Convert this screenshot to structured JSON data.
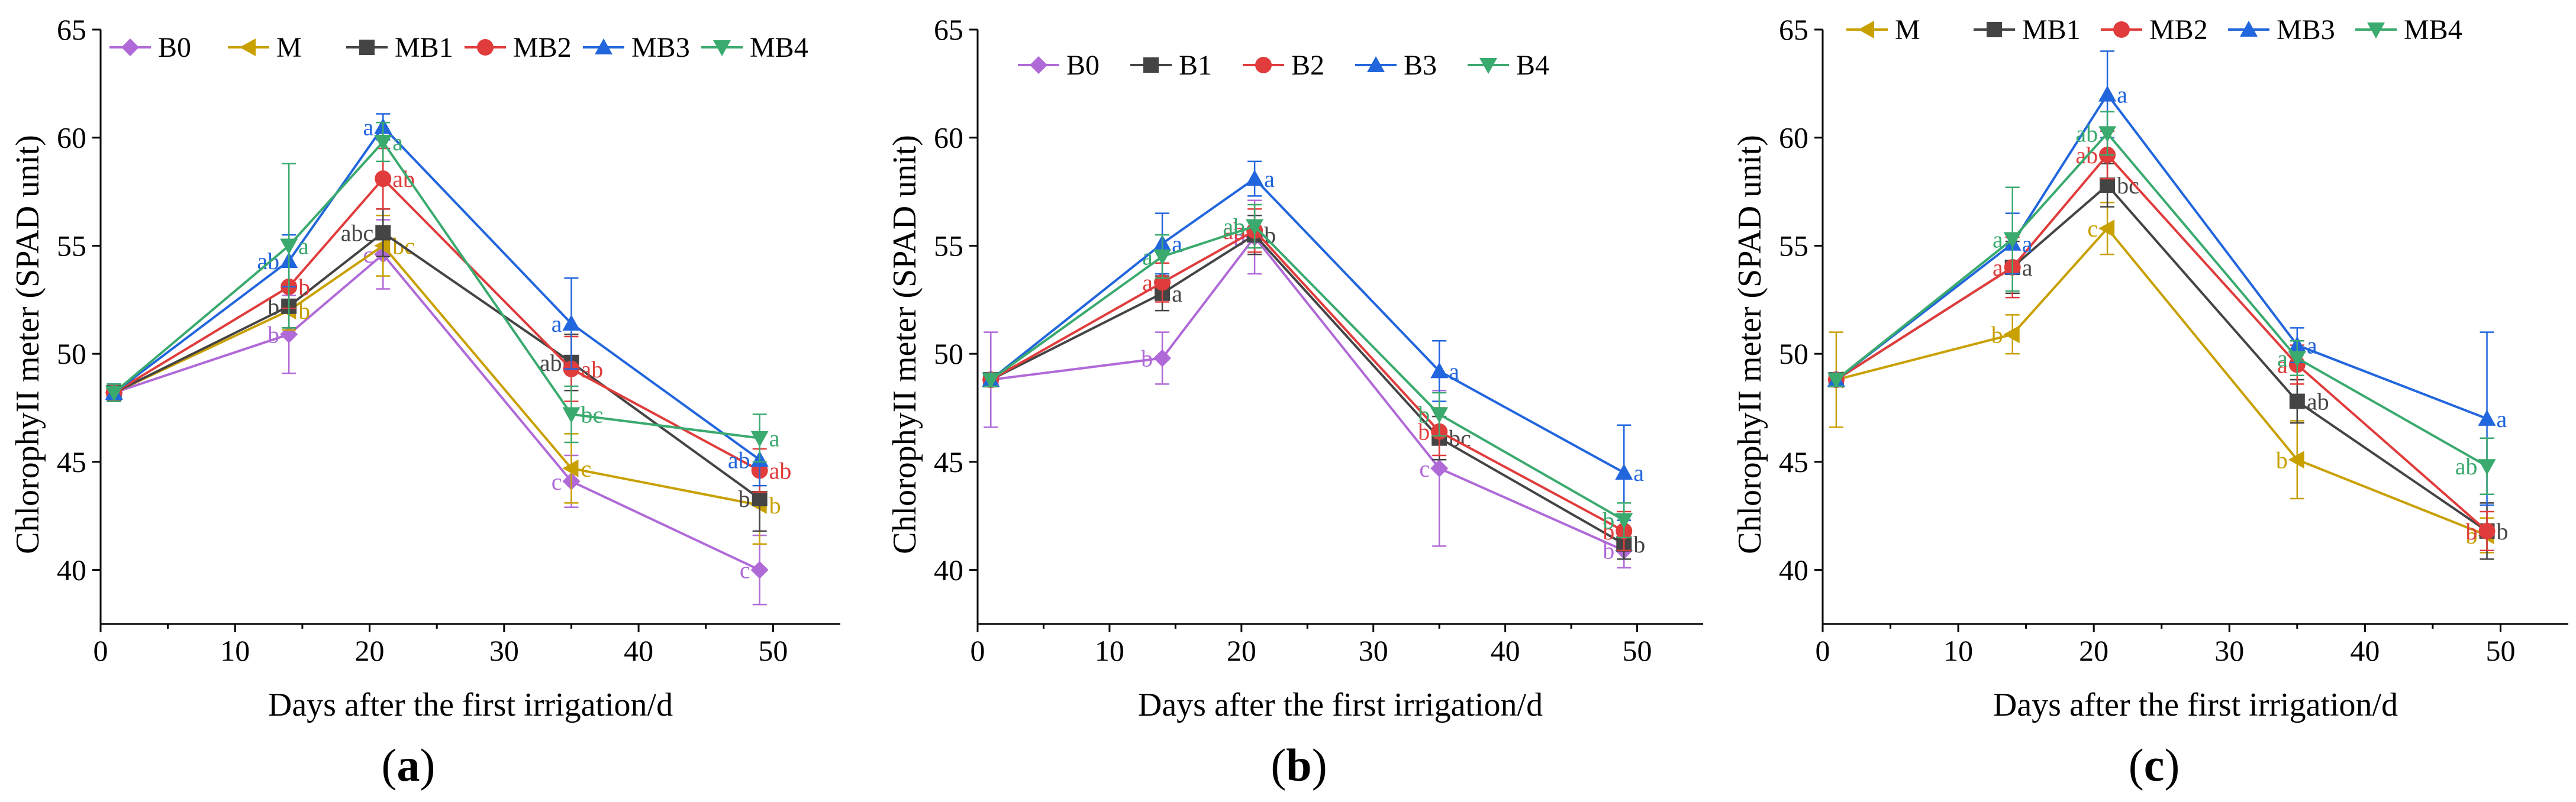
{
  "chart_data": [
    {
      "type": "line",
      "panel_label": "(a)",
      "panel_letter": "a",
      "xlabel": "Days after the first irrigation/d",
      "ylabel": "ChlorophyII meter (SPAD unit)",
      "xlim": [
        0,
        55
      ],
      "ylim": [
        37.5,
        65
      ],
      "xticks": [
        0,
        10,
        20,
        30,
        40,
        50
      ],
      "yticks": [
        40,
        45,
        50,
        55,
        60,
        65
      ],
      "x": [
        1,
        14,
        21,
        35,
        49
      ],
      "legend_position": "top",
      "series": [
        {
          "name": "B0",
          "color": "#b06ad8",
          "marker": "diamond",
          "values": [
            48.2,
            50.9,
            54.6,
            44.1,
            40.0
          ],
          "errors": [
            0.4,
            1.8,
            1.6,
            1.2,
            1.6
          ],
          "labels": [
            "",
            "b",
            "c",
            "c",
            "c"
          ]
        },
        {
          "name": "M",
          "color": "#c8a000",
          "marker": "triangle-left",
          "values": [
            48.2,
            52.0,
            55.0,
            44.7,
            43.0
          ],
          "errors": [
            0.4,
            0.9,
            1.4,
            1.6,
            1.8
          ],
          "labels": [
            "",
            "b",
            "bc",
            "c",
            "b"
          ]
        },
        {
          "name": "MB1",
          "color": "#444444",
          "marker": "square",
          "values": [
            48.2,
            52.2,
            55.6,
            49.6,
            43.3
          ],
          "errors": [
            0.4,
            1.0,
            1.1,
            1.3,
            1.5
          ],
          "labels": [
            "",
            "b",
            "abc",
            "ab",
            "b"
          ]
        },
        {
          "name": "MB2",
          "color": "#e03c3c",
          "marker": "circle",
          "values": [
            48.2,
            53.1,
            58.1,
            49.3,
            44.6
          ],
          "errors": [
            0.4,
            1.0,
            1.4,
            1.5,
            1.0
          ],
          "labels": [
            "",
            "b",
            "ab",
            "ab",
            "ab"
          ]
        },
        {
          "name": "MB3",
          "color": "#2266dd",
          "marker": "triangle-up",
          "values": [
            48.2,
            54.3,
            60.5,
            51.4,
            45.1
          ],
          "errors": [
            0.4,
            1.2,
            0.6,
            2.1,
            1.2
          ],
          "labels": [
            "",
            "ab",
            "a",
            "a",
            "ab"
          ]
        },
        {
          "name": "MB4",
          "color": "#3aaa6e",
          "marker": "triangle-down",
          "values": [
            48.2,
            55.0,
            59.8,
            47.2,
            46.1
          ],
          "errors": [
            0.4,
            3.8,
            0.9,
            1.3,
            1.1
          ],
          "labels": [
            "",
            "a",
            "a",
            "bc",
            "a"
          ]
        }
      ]
    },
    {
      "type": "line",
      "panel_label": "(b)",
      "panel_letter": "b",
      "xlabel": "Days after the first irrigation/d",
      "ylabel": "ChlorophyII meter (SPAD unit)",
      "xlim": [
        0,
        55
      ],
      "ylim": [
        37.5,
        65
      ],
      "xticks": [
        0,
        10,
        20,
        30,
        40,
        50
      ],
      "yticks": [
        40,
        45,
        50,
        55,
        60,
        65
      ],
      "x": [
        1,
        14,
        21,
        35,
        49
      ],
      "legend_position": "top",
      "series": [
        {
          "name": "B0",
          "color": "#b06ad8",
          "marker": "diamond",
          "values": [
            48.8,
            49.8,
            55.4,
            44.7,
            40.9
          ],
          "errors": [
            2.2,
            1.2,
            1.7,
            3.6,
            0.8
          ],
          "labels": [
            "",
            "b",
            "b",
            "c",
            "b"
          ]
        },
        {
          "name": "B1",
          "color": "#444444",
          "marker": "square",
          "values": [
            48.8,
            52.8,
            55.5,
            46.1,
            41.2
          ],
          "errors": [
            0.3,
            0.8,
            0.9,
            1.0,
            0.7
          ],
          "labels": [
            "",
            "a",
            "b",
            "bc",
            "b"
          ]
        },
        {
          "name": "B2",
          "color": "#e03c3c",
          "marker": "circle",
          "values": [
            48.8,
            53.3,
            55.7,
            46.4,
            41.8
          ],
          "errors": [
            0.3,
            0.9,
            1.0,
            1.1,
            0.9
          ],
          "labels": [
            "",
            "a",
            "ab",
            "b",
            "b"
          ]
        },
        {
          "name": "B3",
          "color": "#2266dd",
          "marker": "triangle-up",
          "values": [
            48.8,
            55.1,
            58.1,
            49.2,
            44.5
          ],
          "errors": [
            0.3,
            1.4,
            0.8,
            1.4,
            2.2
          ],
          "labels": [
            "",
            "a",
            "a",
            "a",
            "a"
          ]
        },
        {
          "name": "B4",
          "color": "#3aaa6e",
          "marker": "triangle-down",
          "values": [
            48.8,
            54.5,
            55.9,
            47.2,
            42.3
          ],
          "errors": [
            0.3,
            1.0,
            1.0,
            1.0,
            0.8
          ],
          "labels": [
            "",
            "a",
            "ab",
            "b",
            "b"
          ]
        }
      ]
    },
    {
      "type": "line",
      "panel_label": "(c)",
      "panel_letter": "c",
      "xlabel": "Days after the first irrigation/d",
      "ylabel": "ChlorophyII meter (SPAD unit)",
      "xlim": [
        0,
        55
      ],
      "ylim": [
        37.5,
        65
      ],
      "xticks": [
        0,
        10,
        20,
        30,
        40,
        50
      ],
      "yticks": [
        40,
        45,
        50,
        55,
        60,
        65
      ],
      "x": [
        1,
        14,
        21,
        35,
        49
      ],
      "legend_position": "top",
      "series": [
        {
          "name": "M",
          "color": "#c8a000",
          "marker": "triangle-left",
          "values": [
            48.8,
            50.9,
            55.8,
            45.1,
            41.6
          ],
          "errors": [
            2.2,
            0.9,
            1.2,
            1.8,
            0.8
          ],
          "labels": [
            "",
            "b",
            "c",
            "b",
            "b"
          ]
        },
        {
          "name": "MB1",
          "color": "#444444",
          "marker": "square",
          "values": [
            48.8,
            54.0,
            57.8,
            47.8,
            41.8
          ],
          "errors": [
            0.3,
            1.2,
            1.0,
            1.0,
            1.3
          ],
          "labels": [
            "",
            "a",
            "bc",
            "ab",
            "b"
          ]
        },
        {
          "name": "MB2",
          "color": "#e03c3c",
          "marker": "circle",
          "values": [
            48.8,
            54.0,
            59.2,
            49.5,
            41.8
          ],
          "errors": [
            0.3,
            1.4,
            1.1,
            0.9,
            0.9
          ],
          "labels": [
            "",
            "a",
            "ab",
            "a",
            "b"
          ]
        },
        {
          "name": "MB3",
          "color": "#2266dd",
          "marker": "triangle-up",
          "values": [
            48.8,
            55.1,
            62.0,
            50.4,
            47.0
          ],
          "errors": [
            0.3,
            1.4,
            2.0,
            0.8,
            4.0
          ],
          "labels": [
            "",
            "a",
            "a",
            "a",
            "a"
          ]
        },
        {
          "name": "MB4",
          "color": "#3aaa6e",
          "marker": "triangle-down",
          "values": [
            48.8,
            55.3,
            60.2,
            49.8,
            44.8
          ],
          "errors": [
            0.3,
            2.4,
            1.0,
            0.8,
            1.3
          ],
          "labels": [
            "",
            "a",
            "ab",
            "a",
            "ab"
          ]
        }
      ]
    }
  ]
}
